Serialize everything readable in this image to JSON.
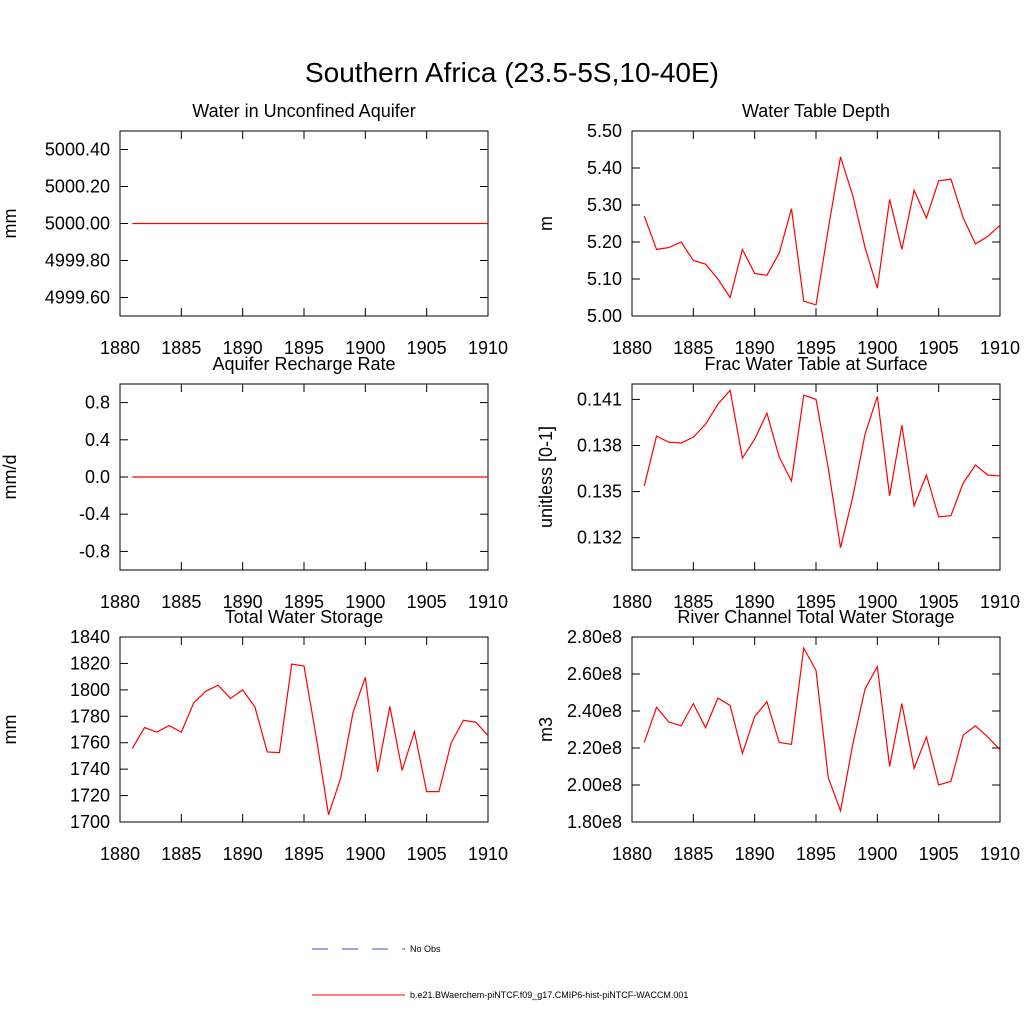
{
  "title": "Southern Africa (23.5-5S,10-40E)",
  "legend": [
    {
      "name": "No Obs",
      "color": "#3b4fb8",
      "dash": true
    },
    {
      "name": "b.e21.BWaerchem-piNTCF.f09_g17.CMIP6-hist-piNTCF-WACCM.001",
      "color": "#ff0000",
      "dash": false
    }
  ],
  "chart_data": [
    {
      "type": "line",
      "title": "Water in Unconfined Aquifer",
      "ylabel": "mm",
      "x": [
        1881,
        1882,
        1883,
        1884,
        1885,
        1886,
        1887,
        1888,
        1889,
        1890,
        1891,
        1892,
        1893,
        1894,
        1895,
        1896,
        1897,
        1898,
        1899,
        1900,
        1901,
        1902,
        1903,
        1904,
        1905,
        1906,
        1907,
        1908,
        1909,
        1910
      ],
      "series": [
        {
          "color": "#ff0000",
          "values": [
            5000,
            5000,
            5000,
            5000,
            5000,
            5000,
            5000,
            5000,
            5000,
            5000,
            5000,
            5000,
            5000,
            5000,
            5000,
            5000,
            5000,
            5000,
            5000,
            5000,
            5000,
            5000,
            5000,
            5000,
            5000,
            5000,
            5000,
            5000,
            5000,
            5000
          ]
        }
      ],
      "xlim": [
        1880,
        1910
      ],
      "xticks": [
        1880,
        1885,
        1890,
        1895,
        1900,
        1905,
        1910
      ],
      "ylim": [
        4999.5,
        5000.5
      ],
      "yticks": [
        {
          "value": 4999.6,
          "label": "4999.60"
        },
        {
          "value": 4999.8,
          "label": "4999.80"
        },
        {
          "value": 5000,
          "label": "5000.00"
        },
        {
          "value": 5000.2,
          "label": "5000.20"
        },
        {
          "value": 5000.4,
          "label": "5000.40"
        }
      ]
    },
    {
      "type": "line",
      "title": "Water Table Depth",
      "ylabel": "m",
      "x": [
        1881,
        1882,
        1883,
        1884,
        1885,
        1886,
        1887,
        1888,
        1889,
        1890,
        1891,
        1892,
        1893,
        1894,
        1895,
        1896,
        1897,
        1898,
        1899,
        1900,
        1901,
        1902,
        1903,
        1904,
        1905,
        1906,
        1907,
        1908,
        1909,
        1910
      ],
      "series": [
        {
          "color": "#ff0000",
          "values": [
            5.27,
            5.18,
            5.185,
            5.2,
            5.15,
            5.14,
            5.1,
            5.05,
            5.18,
            5.115,
            5.11,
            5.17,
            5.29,
            5.04,
            5.03,
            5.235,
            5.43,
            5.325,
            5.185,
            5.075,
            5.315,
            5.18,
            5.34,
            5.265,
            5.365,
            5.37,
            5.265,
            5.195,
            5.215,
            5.245
          ]
        }
      ],
      "xlim": [
        1880,
        1910
      ],
      "xticks": [
        1880,
        1885,
        1890,
        1895,
        1900,
        1905,
        1910
      ],
      "ylim": [
        5.0,
        5.5
      ],
      "yticks": [
        {
          "value": 5.0,
          "label": "5.00"
        },
        {
          "value": 5.1,
          "label": "5.10"
        },
        {
          "value": 5.2,
          "label": "5.20"
        },
        {
          "value": 5.3,
          "label": "5.30"
        },
        {
          "value": 5.4,
          "label": "5.40"
        },
        {
          "value": 5.5,
          "label": "5.50"
        }
      ]
    },
    {
      "type": "line",
      "title": "Aquifer Recharge Rate",
      "ylabel": "mm/d",
      "x": [
        1881,
        1882,
        1883,
        1884,
        1885,
        1886,
        1887,
        1888,
        1889,
        1890,
        1891,
        1892,
        1893,
        1894,
        1895,
        1896,
        1897,
        1898,
        1899,
        1900,
        1901,
        1902,
        1903,
        1904,
        1905,
        1906,
        1907,
        1908,
        1909,
        1910
      ],
      "series": [
        {
          "color": "#ff0000",
          "values": [
            0,
            0,
            0,
            0,
            0,
            0,
            0,
            0,
            0,
            0,
            0,
            0,
            0,
            0,
            0,
            0,
            0,
            0,
            0,
            0,
            0,
            0,
            0,
            0,
            0,
            0,
            0,
            0,
            0,
            0
          ]
        }
      ],
      "xlim": [
        1880,
        1910
      ],
      "xticks": [
        1880,
        1885,
        1890,
        1895,
        1900,
        1905,
        1910
      ],
      "ylim": [
        -1.0,
        1.0
      ],
      "yticks": [
        -0.8,
        -0.4,
        {
          "value": 0,
          "label": "0.0"
        },
        0.4,
        0.8
      ]
    },
    {
      "type": "line",
      "title": "Frac Water Table at Surface",
      "ylabel": "unitless [0-1]",
      "x": [
        1881,
        1882,
        1883,
        1884,
        1885,
        1886,
        1887,
        1888,
        1889,
        1890,
        1891,
        1892,
        1893,
        1894,
        1895,
        1896,
        1897,
        1898,
        1899,
        1900,
        1901,
        1902,
        1903,
        1904,
        1905,
        1906,
        1907,
        1908,
        1909,
        1910
      ],
      "series": [
        {
          "color": "#ff0000",
          "values": [
            0.13537,
            0.13861,
            0.13822,
            0.13816,
            0.13854,
            0.13939,
            0.14068,
            0.14159,
            0.13718,
            0.13841,
            0.1401,
            0.13725,
            0.13569,
            0.14127,
            0.141,
            0.13654,
            0.13135,
            0.13466,
            0.13874,
            0.1412,
            0.13472,
            0.13932,
            0.13407,
            0.13608,
            0.13336,
            0.13343,
            0.13556,
            0.13673,
            0.13608,
            0.13602
          ]
        }
      ],
      "xlim": [
        1880,
        1910
      ],
      "xticks": [
        1880,
        1885,
        1890,
        1895,
        1900,
        1905,
        1910
      ],
      "ylim": [
        0.1299,
        0.142
      ],
      "yticks": [
        0.132,
        0.135,
        0.138,
        0.141
      ]
    },
    {
      "type": "line",
      "title": "Total Water Storage",
      "ylabel": "mm",
      "x": [
        1881,
        1882,
        1883,
        1884,
        1885,
        1886,
        1887,
        1888,
        1889,
        1890,
        1891,
        1892,
        1893,
        1894,
        1895,
        1896,
        1897,
        1898,
        1899,
        1900,
        1901,
        1902,
        1903,
        1904,
        1905,
        1906,
        1907,
        1908,
        1909,
        1910
      ],
      "series": [
        {
          "color": "#ff0000",
          "values": [
            1755.6,
            1771.5,
            1768,
            1773,
            1768,
            1790,
            1799,
            1803.5,
            1793.5,
            1800,
            1787,
            1753,
            1752.5,
            1819.5,
            1818,
            1764,
            1705.5,
            1733.5,
            1783,
            1809.5,
            1738,
            1787.5,
            1739,
            1768.5,
            1723,
            1723,
            1760,
            1777,
            1775.5,
            1765.5
          ]
        }
      ],
      "xlim": [
        1880,
        1910
      ],
      "xticks": [
        1880,
        1885,
        1890,
        1895,
        1900,
        1905,
        1910
      ],
      "ylim": [
        1700,
        1840
      ],
      "yticks": [
        1700,
        1720,
        1740,
        1760,
        1780,
        1800,
        1820,
        1840
      ]
    },
    {
      "type": "line",
      "title": "River Channel Total Water Storage",
      "ylabel": "m3",
      "x": [
        1881,
        1882,
        1883,
        1884,
        1885,
        1886,
        1887,
        1888,
        1889,
        1890,
        1891,
        1892,
        1893,
        1894,
        1895,
        1896,
        1897,
        1898,
        1899,
        1900,
        1901,
        1902,
        1903,
        1904,
        1905,
        1906,
        1907,
        1908,
        1909,
        1910
      ],
      "series": [
        {
          "color": "#ff0000",
          "values": [
            223000000,
            242000000,
            234000000,
            232000000,
            244000000,
            231000000,
            247000000,
            243000000,
            217000000,
            237000000,
            245000000,
            223000000,
            222000000,
            274000000,
            262000000,
            204000000,
            186000000,
            222000000,
            252000000,
            264000000,
            210000000,
            244000000,
            209000000,
            226000000,
            200000000,
            202000000,
            227000000,
            232000000,
            226000000,
            219000000
          ]
        }
      ],
      "xlim": [
        1880,
        1910
      ],
      "xticks": [
        1880,
        1885,
        1890,
        1895,
        1900,
        1905,
        1910
      ],
      "ylim": [
        180000000,
        280000000
      ],
      "yticks": [
        {
          "value": 180000000,
          "label": "1.80e8"
        },
        {
          "value": 200000000,
          "label": "2.00e8"
        },
        {
          "value": 220000000,
          "label": "2.20e8"
        },
        {
          "value": 240000000,
          "label": "2.40e8"
        },
        {
          "value": 260000000,
          "label": "2.60e8"
        },
        {
          "value": 280000000,
          "label": "2.80e8"
        }
      ]
    }
  ]
}
